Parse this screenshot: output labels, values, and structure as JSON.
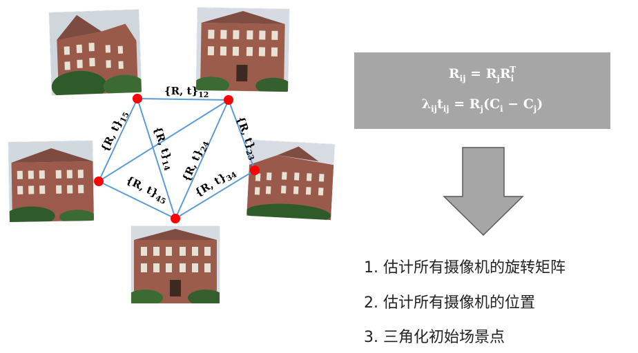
{
  "edge_labels": {
    "e12": {
      "text": "{R, t}",
      "sub": "12"
    },
    "e15": {
      "text": "{R, t}",
      "sub": "15"
    },
    "e14": {
      "text": "{R, t}",
      "sub": "14"
    },
    "e24": {
      "text": "{R, t}",
      "sub": "24"
    },
    "e23": {
      "text": "{R, t}",
      "sub": "23"
    },
    "e34": {
      "text": "{R, t}",
      "sub": "34"
    },
    "e45": {
      "text": "{R, t}",
      "sub": "45"
    }
  },
  "equations": {
    "eq1": {
      "lhs": "R",
      "lhs_sub": "ij",
      "mid": " = R",
      "mid_sub": "j",
      "r": "R",
      "r_sub": "i",
      "r_sup": "T"
    },
    "eq2": {
      "lam": "λ",
      "lam_sub": "ij",
      "t": "t",
      "t_sub": "ij",
      "eq": " = R",
      "eq_sub": "j",
      "paren_open": "(C",
      "ci_sub": "i",
      "minus": " − C",
      "cj_sub": "j",
      "paren_close": ")"
    }
  },
  "steps": [
    "1. 估计所有摄像机的旋转矩阵",
    "2. 估计所有摄像机的位置",
    "3. 三角化初始场景点"
  ],
  "colors": {
    "edge": "#5b9bd5",
    "node": "#ff0000",
    "eq_box": "#a6a6a6",
    "arrow": "#a6a6a6"
  }
}
